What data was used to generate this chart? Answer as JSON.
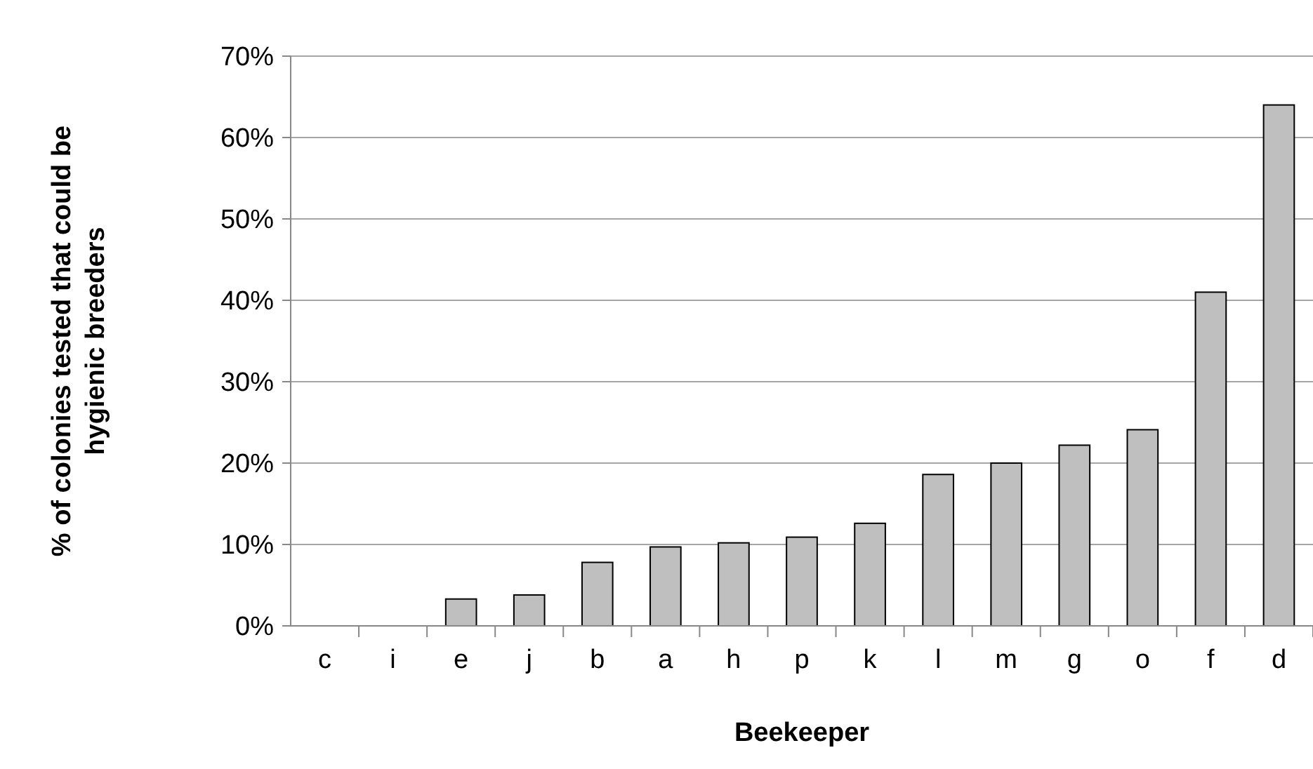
{
  "chart_data": {
    "type": "bar",
    "xlabel": "Beekeeper",
    "ylabel": "% of colonies tested that could be\nhygienic breeders",
    "categories": [
      "c",
      "i",
      "e",
      "j",
      "b",
      "a",
      "h",
      "p",
      "k",
      "l",
      "m",
      "g",
      "o",
      "f",
      "d"
    ],
    "values": [
      0,
      0,
      3.3,
      3.8,
      7.8,
      9.7,
      10.2,
      10.9,
      12.6,
      18.6,
      20.0,
      22.2,
      24.1,
      41.0,
      64.0
    ],
    "color": "#bfbfbf",
    "ylim": [
      0,
      70
    ],
    "yticks": [
      {
        "value": 0,
        "label": "0%"
      },
      {
        "value": 10,
        "label": "10%"
      },
      {
        "value": 20,
        "label": "20%"
      },
      {
        "value": 30,
        "label": "30%"
      },
      {
        "value": 40,
        "label": "40%"
      },
      {
        "value": 50,
        "label": "50%"
      },
      {
        "value": 60,
        "label": "60%"
      },
      {
        "value": 70,
        "label": "70%"
      }
    ],
    "grid": "y"
  }
}
